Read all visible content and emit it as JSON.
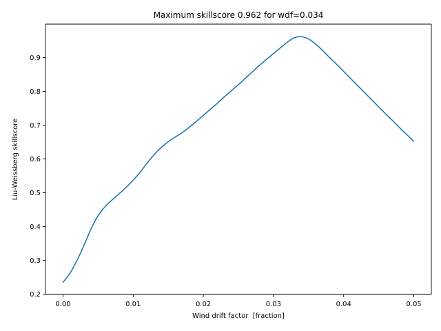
{
  "chart_data": {
    "type": "line",
    "title": "Maximum skillscore 0.962 for wdf=0.034",
    "xlabel": "Wind drift factor  [fraction]",
    "ylabel": "Liu-Weissberg skillscore",
    "xlim": [
      -0.0025,
      0.0525
    ],
    "ylim": [
      0.199,
      0.999
    ],
    "grid": false,
    "xticks": [
      0.0,
      0.01,
      0.02,
      0.03,
      0.04,
      0.05
    ],
    "xtick_labels": [
      "0.00",
      "0.01",
      "0.02",
      "0.03",
      "0.04",
      "0.05"
    ],
    "yticks": [
      0.2,
      0.3,
      0.4,
      0.5,
      0.6,
      0.7,
      0.8,
      0.9
    ],
    "ytick_labels": [
      "0.2",
      "0.3",
      "0.4",
      "0.5",
      "0.6",
      "0.7",
      "0.8",
      "0.9"
    ],
    "series": [
      {
        "color": "#1f77b4",
        "x": [
          0.0,
          0.001,
          0.002,
          0.003,
          0.004,
          0.005,
          0.006,
          0.007,
          0.008,
          0.009,
          0.01,
          0.011,
          0.012,
          0.013,
          0.014,
          0.015,
          0.016,
          0.017,
          0.018,
          0.019,
          0.02,
          0.021,
          0.022,
          0.023,
          0.024,
          0.025,
          0.026,
          0.027,
          0.028,
          0.029,
          0.03,
          0.031,
          0.032,
          0.033,
          0.034,
          0.035,
          0.036,
          0.037,
          0.038,
          0.039,
          0.04,
          0.041,
          0.042,
          0.043,
          0.044,
          0.045,
          0.046,
          0.047,
          0.048,
          0.049,
          0.05
        ],
        "y": [
          0.235,
          0.262,
          0.3,
          0.345,
          0.393,
          0.432,
          0.459,
          0.479,
          0.497,
          0.516,
          0.537,
          0.561,
          0.588,
          0.613,
          0.634,
          0.651,
          0.665,
          0.678,
          0.694,
          0.711,
          0.729,
          0.747,
          0.765,
          0.784,
          0.802,
          0.82,
          0.839,
          0.858,
          0.877,
          0.895,
          0.912,
          0.929,
          0.946,
          0.959,
          0.962,
          0.955,
          0.94,
          0.921,
          0.9,
          0.88,
          0.859,
          0.838,
          0.817,
          0.796,
          0.775,
          0.754,
          0.733,
          0.713,
          0.692,
          0.672,
          0.652
        ]
      }
    ]
  }
}
